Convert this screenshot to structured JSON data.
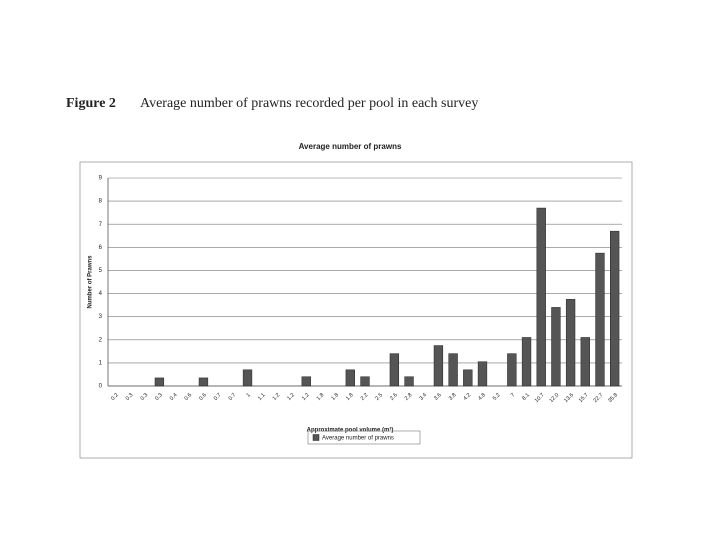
{
  "figure_label": "Figure 2",
  "caption": "Average number of prawns recorded per pool in each survey",
  "chart_data": {
    "type": "bar",
    "title": "Average number of prawns",
    "x_label": "Approximate pool volume (m³)",
    "y_label": "Number of Prawns",
    "categories": [
      "0.2",
      "0.3",
      "0.3",
      "0.3",
      "0.4",
      "0.6",
      "0.6",
      "0.7",
      "0.7",
      "1",
      "1.1",
      "1.2",
      "1.2",
      "1.2",
      "1.8",
      "1.8",
      "1.8",
      "2.2",
      "2.5",
      "2.6",
      "2.8",
      "3.4",
      "3.6",
      "3.8",
      "4.2",
      "4.8",
      "5.2",
      "7",
      "8.1",
      "10.7",
      "12.0",
      "13.6",
      "15.7",
      "22.7",
      "35.8"
    ],
    "series": [
      {
        "name": "Average number of prawns",
        "color": "#555555",
        "values": [
          0,
          0,
          0,
          0.35,
          0,
          0,
          0.35,
          0,
          0,
          0.7,
          0,
          0,
          0,
          0.4,
          0,
          0,
          0.7,
          0.4,
          0,
          1.4,
          0.4,
          0,
          1.75,
          1.4,
          0.7,
          1.05,
          0,
          1.4,
          2.1,
          7.7,
          3.4,
          3.75,
          2.1,
          5.75,
          6.7
        ]
      }
    ],
    "ylim": [
      0,
      9
    ],
    "yticks": [
      0,
      1,
      2,
      3,
      4,
      5,
      6,
      7,
      8,
      9
    ],
    "grid": true,
    "legend": "bottom"
  }
}
